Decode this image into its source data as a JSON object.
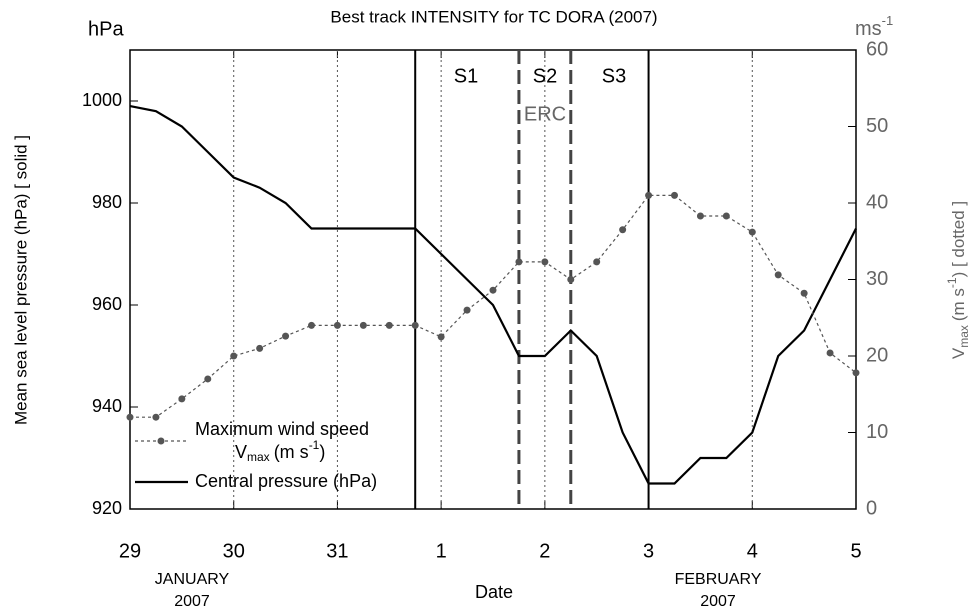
{
  "chart_data": {
    "type": "line",
    "title": "Best track INTENSITY for TC DORA (2007)",
    "y_unit": "hPa",
    "y2_unit_parts": [
      "ms",
      "-1"
    ],
    "ylabel": "Mean sea level pressure (hPa)  [ solid ]",
    "y2label_parts": [
      "V",
      "max",
      "(m s",
      "-1",
      ")  [ dotted ]"
    ],
    "xlabel": "Date",
    "month_labels": [
      [
        "JANUARY",
        "2007"
      ],
      [
        "FEBRUARY",
        "2007"
      ]
    ],
    "annotations": [
      "S1",
      "S2",
      "S3",
      "ERC"
    ],
    "x": [
      0,
      0.25,
      0.5,
      0.75,
      1,
      1.25,
      1.5,
      1.75,
      2,
      2.25,
      2.5,
      2.75,
      3,
      3.25,
      3.5,
      3.75,
      4,
      4.25,
      4.5,
      4.75,
      5,
      5.25,
      5.5,
      5.75,
      6,
      6.25,
      6.5,
      6.75,
      7
    ],
    "series": [
      {
        "name_parts": [
          "Central pressure (hPa)"
        ],
        "color": "#000000",
        "style": "solid",
        "axis": "y",
        "values": [
          999,
          998,
          995,
          990,
          985,
          983,
          980,
          975,
          975,
          975,
          975,
          975,
          970,
          965,
          960,
          950,
          950,
          955,
          950,
          935,
          925,
          925,
          930,
          930,
          935,
          950,
          955,
          965,
          975
        ]
      },
      {
        "name_parts": [
          "Maximum wind speed",
          "V",
          "max",
          "(m s",
          "-1",
          ")"
        ],
        "color": "#555555",
        "style": "dotted",
        "axis": "y2",
        "values": [
          12,
          12,
          14.4,
          17,
          20,
          21,
          22.6,
          24,
          24,
          24,
          24,
          24,
          22.5,
          26,
          28.6,
          32.3,
          32.3,
          30,
          32.3,
          36.5,
          41,
          41,
          38.3,
          38.3,
          36.2,
          30.6,
          28.2,
          20.4,
          17.8
        ]
      }
    ],
    "phase_lines": [
      {
        "value": 2.75,
        "style": "solid"
      },
      {
        "value": 3.75,
        "style": "dashed"
      },
      {
        "value": 4.25,
        "style": "dashed"
      },
      {
        "value": 5,
        "style": "solid"
      }
    ],
    "xlim": [
      0,
      7
    ],
    "xticks": [
      {
        "value": 0,
        "label": "29"
      },
      {
        "value": 1,
        "label": "30"
      },
      {
        "value": 2,
        "label": "31"
      },
      {
        "value": 3,
        "label": "1"
      },
      {
        "value": 4,
        "label": "2"
      },
      {
        "value": 5,
        "label": "3"
      },
      {
        "value": 6,
        "label": "4"
      },
      {
        "value": 7,
        "label": "5"
      }
    ],
    "ylim": [
      920,
      1010
    ],
    "yticks": [
      920,
      940,
      960,
      980,
      1000
    ],
    "y2lim": [
      0,
      60
    ],
    "y2ticks": [
      0,
      10,
      20,
      30,
      40,
      50,
      60
    ],
    "grid": true,
    "legend": "lower left"
  }
}
